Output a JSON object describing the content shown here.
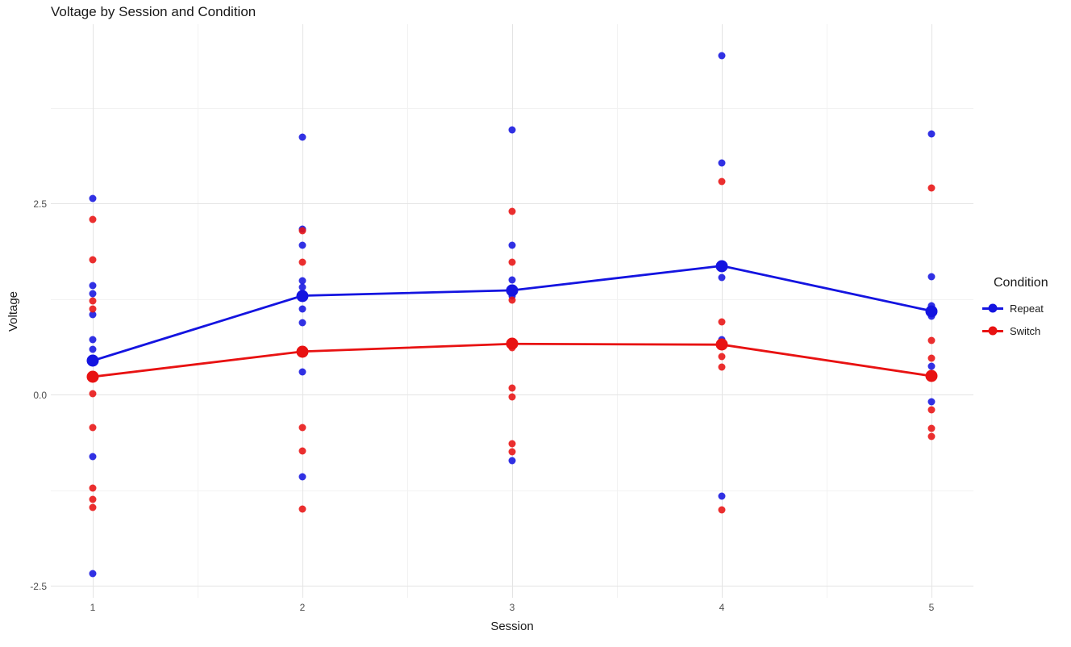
{
  "title": "Voltage by Session and Condition",
  "colors": {
    "repeat": "#1414e0",
    "switch": "#e81212",
    "grid_major": "#e4e4e4",
    "grid_minor": "#f2f2f2",
    "tick_text": "#4d4d4d",
    "text": "#1a1a1a",
    "background": "#ffffff"
  },
  "legend": {
    "title": "Condition",
    "entries": [
      {
        "label": "Repeat",
        "color": "#1414e0"
      },
      {
        "label": "Switch",
        "color": "#e81212"
      }
    ]
  },
  "chart_data": {
    "type": "scatter",
    "title": "Voltage by Session and Condition",
    "xlabel": "Session",
    "ylabel": "Voltage",
    "xlim": [
      0.8,
      5.2
    ],
    "ylim": [
      -2.65,
      4.85
    ],
    "x_major_ticks": [
      1,
      2,
      3,
      4,
      5
    ],
    "x_tick_labels": [
      "1",
      "2",
      "3",
      "4",
      "5"
    ],
    "x_minor_ticks": [
      1.5,
      2.5,
      3.5,
      4.5
    ],
    "y_major_ticks": [
      2.5,
      0.0,
      -2.5
    ],
    "y_tick_labels": [
      "2.5",
      "0.0",
      "-2.5"
    ],
    "y_minor_ticks": [
      3.75,
      1.25,
      -1.25
    ],
    "grid": true,
    "legend_position": "right",
    "legend_title": "Condition",
    "series": [
      {
        "name": "Repeat",
        "color": "#1414e0",
        "means": [
          [
            1,
            0.45
          ],
          [
            2,
            1.3
          ],
          [
            3,
            1.37
          ],
          [
            4,
            1.69
          ],
          [
            5,
            1.1
          ]
        ],
        "points": [
          [
            1,
            2.57
          ],
          [
            1,
            1.43
          ],
          [
            1,
            1.33
          ],
          [
            1,
            1.05
          ],
          [
            1,
            0.73
          ],
          [
            1,
            0.6
          ],
          [
            1,
            -0.8
          ],
          [
            1,
            -2.33
          ],
          [
            2,
            3.37
          ],
          [
            2,
            2.17
          ],
          [
            2,
            1.96
          ],
          [
            2,
            1.5
          ],
          [
            2,
            1.41
          ],
          [
            2,
            1.13
          ],
          [
            2,
            0.95
          ],
          [
            2,
            0.3
          ],
          [
            2,
            -1.07
          ],
          [
            3,
            3.47
          ],
          [
            3,
            1.96
          ],
          [
            3,
            1.51
          ],
          [
            3,
            1.3
          ],
          [
            3,
            -0.86
          ],
          [
            4,
            4.44
          ],
          [
            4,
            3.04
          ],
          [
            4,
            1.54
          ],
          [
            4,
            0.73
          ],
          [
            4,
            -1.32
          ],
          [
            5,
            3.42
          ],
          [
            5,
            1.55
          ],
          [
            5,
            1.17
          ],
          [
            5,
            1.03
          ],
          [
            5,
            0.38
          ],
          [
            5,
            -0.09
          ]
        ]
      },
      {
        "name": "Switch",
        "color": "#e81212",
        "means": [
          [
            1,
            0.24
          ],
          [
            2,
            0.57
          ],
          [
            3,
            0.67
          ],
          [
            4,
            0.66
          ],
          [
            5,
            0.25
          ]
        ],
        "points": [
          [
            1,
            2.3
          ],
          [
            1,
            1.77
          ],
          [
            1,
            1.23
          ],
          [
            1,
            1.13
          ],
          [
            1,
            0.02
          ],
          [
            1,
            -0.42
          ],
          [
            1,
            -1.22
          ],
          [
            1,
            -1.36
          ],
          [
            1,
            -1.47
          ],
          [
            2,
            2.15
          ],
          [
            2,
            1.74
          ],
          [
            2,
            -0.42
          ],
          [
            2,
            -0.73
          ],
          [
            2,
            -1.49
          ],
          [
            3,
            2.4
          ],
          [
            3,
            1.74
          ],
          [
            3,
            1.24
          ],
          [
            3,
            0.62
          ],
          [
            3,
            0.09
          ],
          [
            3,
            -0.02
          ],
          [
            3,
            -0.64
          ],
          [
            3,
            -0.74
          ],
          [
            4,
            2.79
          ],
          [
            4,
            0.96
          ],
          [
            4,
            0.5
          ],
          [
            4,
            0.37
          ],
          [
            4,
            -1.5
          ],
          [
            5,
            2.71
          ],
          [
            5,
            0.72
          ],
          [
            5,
            0.48
          ],
          [
            5,
            -0.19
          ],
          [
            5,
            -0.43
          ],
          [
            5,
            -0.54
          ]
        ]
      }
    ]
  }
}
